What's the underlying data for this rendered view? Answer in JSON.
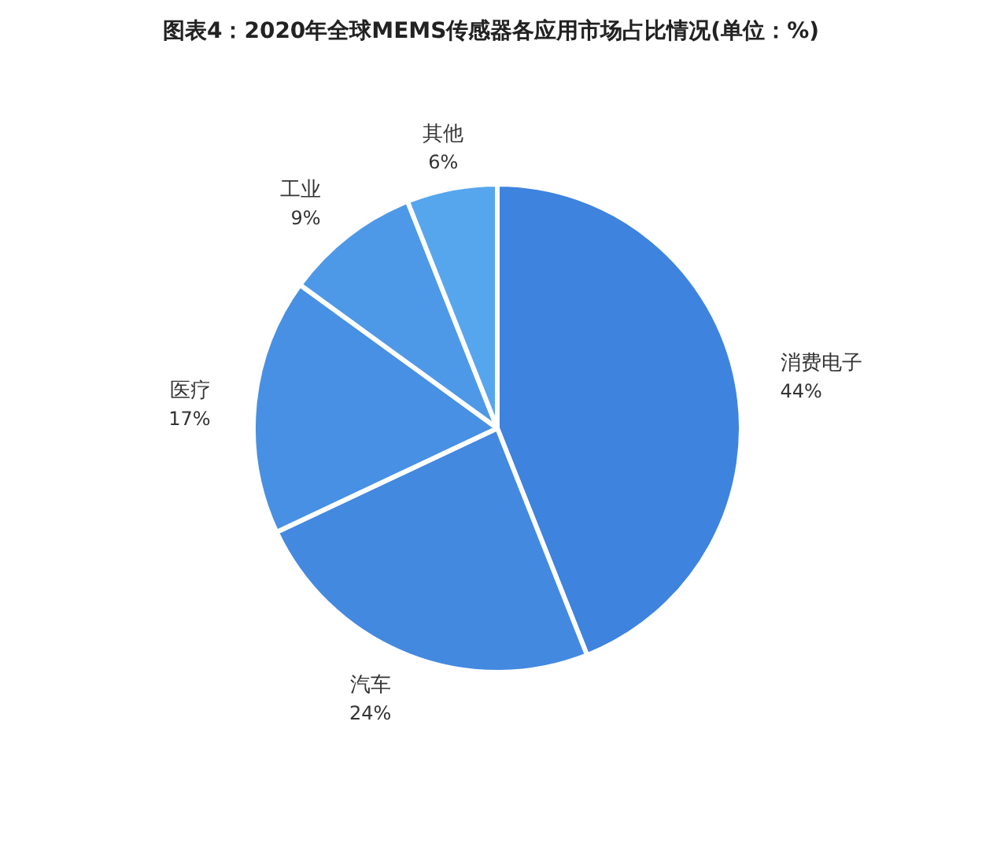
{
  "chart_data": {
    "type": "pie",
    "title": "图表4：2020年全球MEMS传感器各应用市场占比情况(单位：%)",
    "categories": [
      "消费电子",
      "汽车",
      "医疗",
      "工业",
      "其他"
    ],
    "values": [
      44,
      24,
      17,
      9,
      6
    ],
    "value_labels": [
      "44%",
      "24%",
      "17%",
      "9%",
      "6%"
    ],
    "colors": [
      "#3e83de",
      "#4389e0",
      "#4890e3",
      "#4e99e7",
      "#56a6ee"
    ]
  }
}
